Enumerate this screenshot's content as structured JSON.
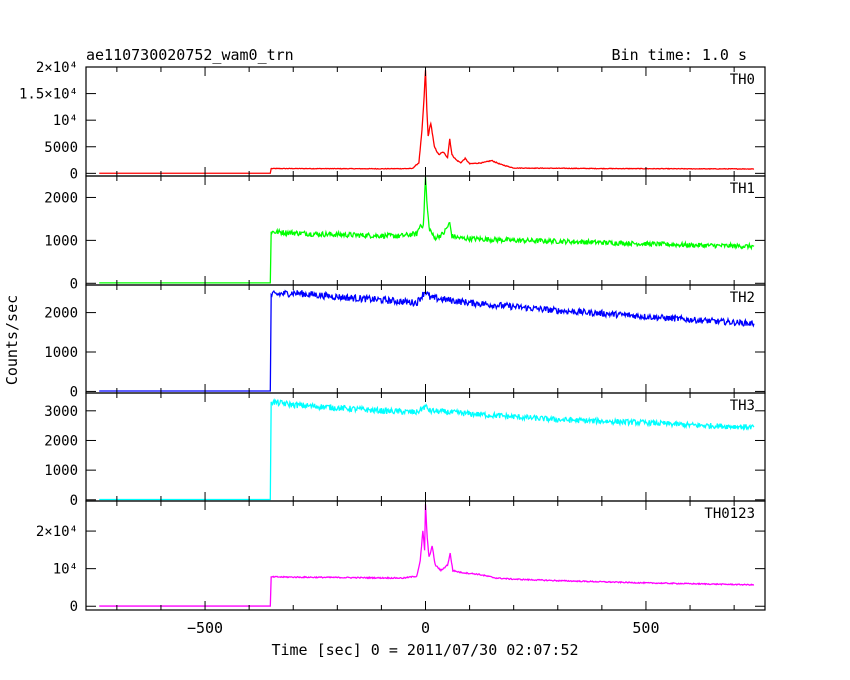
{
  "header": {
    "title": "ae110730020752_wam0_trn",
    "bin_time": "Bin time: 1.0 s"
  },
  "chart_data": {
    "type": "line",
    "xlabel": "Time [sec] 0 = 2011/07/30 02:07:52",
    "ylabel": "Counts/sec",
    "xlim": [
      -770,
      770
    ],
    "x_ticks": [
      -500,
      0,
      500
    ],
    "x_tick_labels": [
      "−500",
      "0",
      "500"
    ],
    "grid": false,
    "panels": [
      {
        "name": "TH0",
        "color": "#ff0000",
        "ylim": [
          -500,
          20000
        ],
        "y_ticks": [
          0,
          5000,
          10000,
          15000,
          20000
        ],
        "y_tick_labels": [
          "0",
          "5000",
          "10⁴",
          "1.5×10⁴",
          "2×10⁴"
        ],
        "baseline_before_onset": 20,
        "onset_time": -350,
        "points": [
          [
            -740,
            20
          ],
          [
            -352,
            20
          ],
          [
            -350,
            900
          ],
          [
            -300,
            900
          ],
          [
            -200,
            880
          ],
          [
            -100,
            860
          ],
          [
            -30,
            900
          ],
          [
            -15,
            2000
          ],
          [
            -8,
            8000
          ],
          [
            -3,
            14500
          ],
          [
            0,
            19500
          ],
          [
            3,
            12000
          ],
          [
            6,
            7000
          ],
          [
            12,
            9500
          ],
          [
            20,
            5000
          ],
          [
            30,
            3500
          ],
          [
            40,
            4000
          ],
          [
            50,
            3000
          ],
          [
            55,
            6500
          ],
          [
            60,
            3500
          ],
          [
            70,
            2500
          ],
          [
            80,
            2000
          ],
          [
            90,
            2800
          ],
          [
            100,
            1800
          ],
          [
            130,
            2000
          ],
          [
            150,
            2400
          ],
          [
            170,
            1700
          ],
          [
            200,
            1000
          ],
          [
            300,
            950
          ],
          [
            400,
            900
          ],
          [
            500,
            880
          ],
          [
            600,
            850
          ],
          [
            745,
            830
          ]
        ]
      },
      {
        "name": "TH1",
        "color": "#00ff00",
        "ylim": [
          -40,
          2500
        ],
        "y_ticks": [
          0,
          1000,
          2000
        ],
        "y_tick_labels": [
          "0",
          "1000",
          "2000"
        ],
        "baseline_before_onset": 10,
        "onset_time": -350,
        "points": [
          [
            -740,
            10
          ],
          [
            -352,
            10
          ],
          [
            -350,
            1200
          ],
          [
            -250,
            1150
          ],
          [
            -150,
            1120
          ],
          [
            -60,
            1100
          ],
          [
            -20,
            1150
          ],
          [
            -10,
            1400
          ],
          [
            -5,
            1300
          ],
          [
            0,
            2500
          ],
          [
            3,
            1900
          ],
          [
            8,
            1300
          ],
          [
            20,
            1050
          ],
          [
            40,
            1150
          ],
          [
            55,
            1400
          ],
          [
            60,
            1100
          ],
          [
            80,
            1050
          ],
          [
            200,
            1000
          ],
          [
            300,
            980
          ],
          [
            400,
            950
          ],
          [
            500,
            920
          ],
          [
            600,
            890
          ],
          [
            745,
            860
          ]
        ]
      },
      {
        "name": "TH2",
        "color": "#0000ff",
        "ylim": [
          -40,
          2700
        ],
        "y_ticks": [
          0,
          1000,
          2000
        ],
        "y_tick_labels": [
          "0",
          "1000",
          "2000"
        ],
        "baseline_before_onset": 10,
        "onset_time": -350,
        "points": [
          [
            -740,
            10
          ],
          [
            -352,
            10
          ],
          [
            -350,
            2450
          ],
          [
            -300,
            2500
          ],
          [
            -200,
            2400
          ],
          [
            -100,
            2320
          ],
          [
            -20,
            2250
          ],
          [
            0,
            2550
          ],
          [
            10,
            2380
          ],
          [
            100,
            2250
          ],
          [
            200,
            2150
          ],
          [
            300,
            2050
          ],
          [
            400,
            1980
          ],
          [
            500,
            1900
          ],
          [
            600,
            1820
          ],
          [
            745,
            1720
          ]
        ]
      },
      {
        "name": "TH3",
        "color": "#00ffff",
        "ylim": [
          -40,
          3600
        ],
        "y_ticks": [
          0,
          1000,
          2000,
          3000
        ],
        "y_tick_labels": [
          "0",
          "1000",
          "2000",
          "3000"
        ],
        "baseline_before_onset": 10,
        "onset_time": -350,
        "points": [
          [
            -740,
            10
          ],
          [
            -352,
            10
          ],
          [
            -350,
            3300
          ],
          [
            -300,
            3200
          ],
          [
            -200,
            3100
          ],
          [
            -100,
            3000
          ],
          [
            -20,
            2950
          ],
          [
            0,
            3150
          ],
          [
            10,
            3000
          ],
          [
            100,
            2900
          ],
          [
            200,
            2800
          ],
          [
            300,
            2700
          ],
          [
            400,
            2650
          ],
          [
            500,
            2600
          ],
          [
            600,
            2520
          ],
          [
            745,
            2450
          ]
        ]
      },
      {
        "name": "TH0123",
        "color": "#ff00ff",
        "ylim": [
          -1000,
          28000
        ],
        "y_ticks": [
          0,
          10000,
          20000
        ],
        "y_tick_labels": [
          "0",
          "10⁴",
          "2×10⁴"
        ],
        "baseline_before_onset": 50,
        "onset_time": -350,
        "points": [
          [
            -740,
            50
          ],
          [
            -352,
            50
          ],
          [
            -350,
            7800
          ],
          [
            -250,
            7700
          ],
          [
            -150,
            7600
          ],
          [
            -50,
            7500
          ],
          [
            -20,
            8000
          ],
          [
            -12,
            12000
          ],
          [
            -6,
            20000
          ],
          [
            -2,
            15000
          ],
          [
            0,
            27000
          ],
          [
            4,
            18000
          ],
          [
            8,
            13000
          ],
          [
            15,
            16000
          ],
          [
            22,
            11000
          ],
          [
            35,
            9500
          ],
          [
            50,
            11000
          ],
          [
            56,
            14000
          ],
          [
            62,
            9500
          ],
          [
            80,
            9000
          ],
          [
            120,
            8500
          ],
          [
            160,
            7500
          ],
          [
            200,
            7200
          ],
          [
            300,
            6800
          ],
          [
            400,
            6500
          ],
          [
            500,
            6200
          ],
          [
            600,
            6000
          ],
          [
            745,
            5700
          ]
        ]
      }
    ]
  }
}
